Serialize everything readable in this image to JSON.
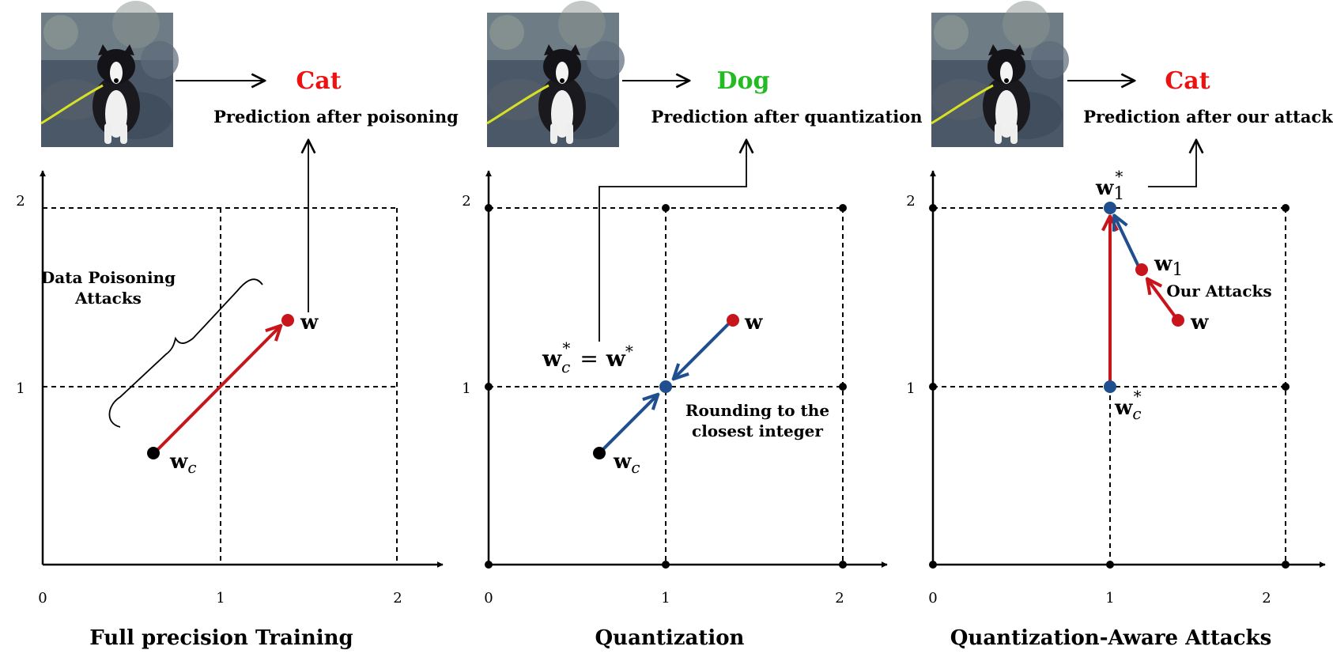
{
  "colors": {
    "red": "#c8151b",
    "blue": "#1f4f8f",
    "green": "#22bb22",
    "pred_red": "#ee1111",
    "black": "#000000"
  },
  "panels": [
    {
      "title": "Full precision Training",
      "prediction": "Cat",
      "prediction_color": "pred_red",
      "caption": "Prediction after poisoning",
      "x_ticks": [
        "0",
        "1",
        "2"
      ],
      "y_ticks": [
        "1",
        "2"
      ],
      "annotation": [
        "Data Poisoning",
        "Attacks"
      ],
      "point_labels": {
        "w": "w",
        "wc": "w",
        "wc_sub": "c"
      }
    },
    {
      "title": "Quantization",
      "prediction": "Dog",
      "prediction_color": "green",
      "caption": "Prediction after quantization",
      "x_ticks": [
        "0",
        "1",
        "2"
      ],
      "y_ticks": [
        "1",
        "2"
      ],
      "annotation": [
        "Rounding to the",
        "closest integer"
      ],
      "point_labels": {
        "w": "w",
        "wc": "w",
        "wc_sub": "c",
        "eq_lhs": "w",
        "eq_sub": "c",
        "eq_star": "*",
        "eq_mid": "=",
        "eq_rhs": "w"
      }
    },
    {
      "title": "Quantization-Aware Attacks",
      "prediction": "Cat",
      "prediction_color": "pred_red",
      "caption": "Prediction after our attack",
      "x_ticks": [
        "0",
        "1",
        "2"
      ],
      "y_ticks": [
        "1",
        "2"
      ],
      "annotation": [
        "Our Attacks"
      ],
      "point_labels": {
        "w": "w",
        "w1": "w",
        "w1_sub": "1",
        "w1s": "w",
        "w1s_sub": "1",
        "w1s_star": "*",
        "wcs": "w",
        "wcs_sub": "c",
        "wcs_star": "*"
      }
    }
  ],
  "image_description_icon": "dog-photo"
}
